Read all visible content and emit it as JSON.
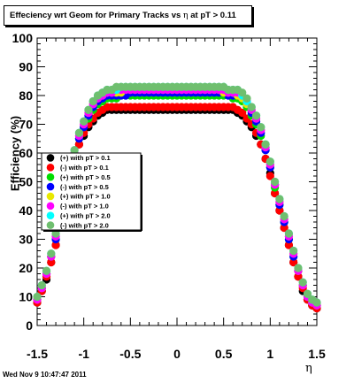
{
  "title_prefix": "Effeciency wrt Geom for Primary Tracks vs",
  "title_eta": "η",
  "title_suffix": "at pT > 0.11",
  "ylabel": "Efficiency (%)",
  "xlabel": "η",
  "timestamp": "Wed Nov  9 10:47:47 2011",
  "chart_data": {
    "type": "scatter",
    "title": "Effeciency wrt Geom for Primary Tracks vs η at pT > 0.11",
    "xlabel": "η",
    "ylabel": "Efficiency (%)",
    "xlim": [
      -1.5,
      1.5
    ],
    "ylim": [
      0,
      100
    ],
    "x_ticks": [
      "-1.5",
      "-1",
      "-0.5",
      "0",
      "0.5",
      "1",
      "1.5"
    ],
    "y_ticks": [
      "0",
      "10",
      "20",
      "30",
      "40",
      "50",
      "60",
      "70",
      "80",
      "90",
      "100"
    ],
    "grid": false,
    "legend_position": "left-middle",
    "x": [
      -1.5,
      -1.45,
      -1.4,
      -1.35,
      -1.3,
      -1.25,
      -1.2,
      -1.15,
      -1.1,
      -1.05,
      -1.0,
      -0.95,
      -0.9,
      -0.85,
      -0.8,
      -0.75,
      -0.7,
      -0.65,
      -0.6,
      -0.55,
      -0.5,
      -0.45,
      -0.4,
      -0.35,
      -0.3,
      -0.25,
      -0.2,
      -0.15,
      -0.1,
      -0.05,
      0.0,
      0.05,
      0.1,
      0.15,
      0.2,
      0.25,
      0.3,
      0.35,
      0.4,
      0.45,
      0.5,
      0.55,
      0.6,
      0.65,
      0.7,
      0.75,
      0.8,
      0.85,
      0.9,
      0.95,
      1.0,
      1.05,
      1.1,
      1.15,
      1.2,
      1.25,
      1.3,
      1.35,
      1.4,
      1.45,
      1.5
    ],
    "series": [
      {
        "name": "(+) with pT > 0.1",
        "color": "#000000",
        "values": [
          8,
          12,
          16,
          22,
          28,
          35,
          42,
          50,
          57,
          63,
          66,
          69,
          71,
          73,
          74,
          75,
          75,
          75,
          75,
          75,
          75,
          75,
          75,
          75,
          75,
          75,
          75,
          75,
          75,
          75,
          75,
          75,
          75,
          75,
          75,
          75,
          75,
          75,
          75,
          75,
          75,
          75,
          75,
          74,
          73,
          71,
          69,
          66,
          63,
          58,
          53,
          46,
          40,
          34,
          28,
          22,
          17,
          12,
          9,
          7,
          6
        ]
      },
      {
        "name": "(-) with pT > 0.1",
        "color": "#ff0000",
        "values": [
          8,
          12,
          17,
          22,
          28,
          35,
          42,
          50,
          57,
          63,
          67,
          70,
          72,
          74,
          75,
          76,
          76,
          76,
          76,
          76,
          76,
          76,
          76,
          76,
          76,
          76,
          76,
          76,
          76,
          76,
          76,
          76,
          76,
          76,
          76,
          76,
          76,
          76,
          76,
          76,
          76,
          76,
          76,
          75,
          74,
          72,
          70,
          67,
          63,
          58,
          52,
          46,
          40,
          34,
          28,
          22,
          17,
          13,
          9,
          7,
          6
        ]
      },
      {
        "name": "(+) with pT > 0.5",
        "color": "#00dd00",
        "values": [
          9,
          13,
          18,
          24,
          30,
          37,
          44,
          52,
          59,
          65,
          69,
          72,
          75,
          77,
          78,
          79,
          79,
          79,
          80,
          80,
          80,
          80,
          80,
          80,
          80,
          80,
          80,
          80,
          80,
          80,
          80,
          80,
          80,
          80,
          80,
          80,
          80,
          80,
          80,
          80,
          80,
          80,
          79,
          79,
          78,
          76,
          73,
          70,
          66,
          61,
          55,
          48,
          42,
          36,
          30,
          24,
          19,
          14,
          10,
          8,
          7
        ]
      },
      {
        "name": "(-) with pT > 0.5",
        "color": "#0000ff",
        "values": [
          9,
          13,
          18,
          24,
          30,
          37,
          44,
          52,
          59,
          65,
          69,
          73,
          76,
          78,
          79,
          80,
          80,
          80,
          80,
          80,
          81,
          81,
          81,
          81,
          81,
          81,
          81,
          81,
          81,
          81,
          81,
          81,
          81,
          81,
          81,
          81,
          81,
          81,
          81,
          81,
          81,
          80,
          80,
          80,
          79,
          77,
          74,
          71,
          67,
          61,
          55,
          49,
          42,
          36,
          30,
          24,
          19,
          14,
          10,
          8,
          7
        ]
      },
      {
        "name": "(+) with pT > 1.0",
        "color": "#e8e800",
        "values": [
          9,
          13,
          18,
          24,
          31,
          38,
          45,
          53,
          60,
          66,
          70,
          74,
          77,
          79,
          80,
          81,
          81,
          81,
          81,
          82,
          82,
          82,
          82,
          82,
          82,
          82,
          82,
          82,
          82,
          82,
          82,
          82,
          82,
          82,
          82,
          82,
          82,
          82,
          82,
          82,
          81,
          81,
          81,
          80,
          79,
          77,
          75,
          72,
          68,
          62,
          56,
          49,
          43,
          37,
          31,
          25,
          19,
          14,
          10,
          8,
          7
        ]
      },
      {
        "name": "(-) with pT > 1.0",
        "color": "#ff00ff",
        "values": [
          9,
          13,
          18,
          24,
          31,
          38,
          45,
          53,
          60,
          66,
          70,
          74,
          77,
          79,
          80,
          81,
          81,
          82,
          82,
          82,
          82,
          82,
          82,
          82,
          82,
          82,
          82,
          82,
          82,
          82,
          82,
          82,
          82,
          82,
          82,
          82,
          82,
          82,
          82,
          82,
          82,
          81,
          81,
          81,
          80,
          78,
          75,
          72,
          68,
          62,
          56,
          49,
          43,
          37,
          31,
          25,
          19,
          14,
          10,
          8,
          7
        ]
      },
      {
        "name": "(+) with pT > 2.0",
        "color": "#00ffff",
        "values": [
          10,
          14,
          19,
          25,
          32,
          39,
          46,
          54,
          61,
          67,
          71,
          75,
          78,
          80,
          81,
          82,
          82,
          82,
          83,
          83,
          83,
          83,
          83,
          83,
          83,
          83,
          83,
          83,
          83,
          83,
          83,
          83,
          83,
          83,
          83,
          83,
          83,
          83,
          83,
          83,
          83,
          82,
          82,
          82,
          80,
          78,
          76,
          73,
          69,
          63,
          57,
          50,
          44,
          38,
          32,
          26,
          20,
          15,
          11,
          9,
          8
        ]
      },
      {
        "name": "(-) with pT > 2.0",
        "color": "#6fbf6f",
        "values": [
          10,
          14,
          19,
          25,
          32,
          39,
          46,
          54,
          61,
          67,
          71,
          75,
          78,
          80,
          81,
          82,
          82,
          83,
          83,
          83,
          83,
          83,
          83,
          83,
          83,
          83,
          83,
          83,
          83,
          83,
          83,
          83,
          83,
          83,
          83,
          83,
          83,
          83,
          83,
          83,
          83,
          82,
          82,
          82,
          81,
          79,
          76,
          73,
          69,
          63,
          57,
          50,
          44,
          38,
          32,
          26,
          20,
          15,
          11,
          9,
          8
        ]
      }
    ]
  }
}
